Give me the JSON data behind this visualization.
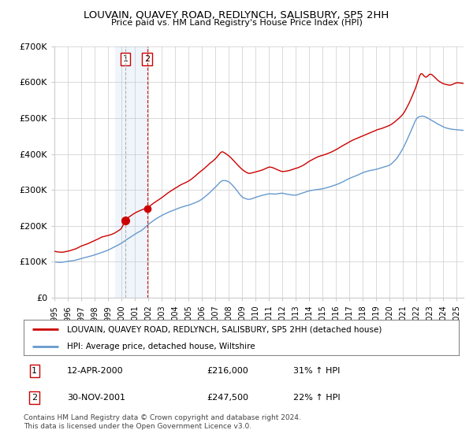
{
  "title": "LOUVAIN, QUAVEY ROAD, REDLYNCH, SALISBURY, SP5 2HH",
  "subtitle": "Price paid vs. HM Land Registry's House Price Index (HPI)",
  "legend_line1": "LOUVAIN, QUAVEY ROAD, REDLYNCH, SALISBURY, SP5 2HH (detached house)",
  "legend_line2": "HPI: Average price, detached house, Wiltshire",
  "footer": "Contains HM Land Registry data © Crown copyright and database right 2024.\nThis data is licensed under the Open Government Licence v3.0.",
  "transaction1_date": "12-APR-2000",
  "transaction1_price": "£216,000",
  "transaction1_hpi": "31% ↑ HPI",
  "transaction2_date": "30-NOV-2001",
  "transaction2_price": "£247,500",
  "transaction2_hpi": "22% ↑ HPI",
  "ylim": [
    0,
    700000
  ],
  "yticks": [
    0,
    100000,
    200000,
    300000,
    400000,
    500000,
    600000,
    700000
  ],
  "ytick_labels": [
    "£0",
    "£100K",
    "£200K",
    "£300K",
    "£400K",
    "£500K",
    "£600K",
    "£700K"
  ],
  "red_color": "#cc0000",
  "blue_color": "#6699cc",
  "shade_color": "#d0e4f7",
  "background_color": "#ffffff",
  "grid_color": "#cccccc",
  "transaction1_x": 2000.29,
  "transaction2_x": 2001.92,
  "marker1_y": 216000,
  "marker2_y": 247500,
  "shade1_x_start": 1999.5,
  "shade2_x_end": 2001.92,
  "xmin": 1995,
  "xmax": 2025.5
}
